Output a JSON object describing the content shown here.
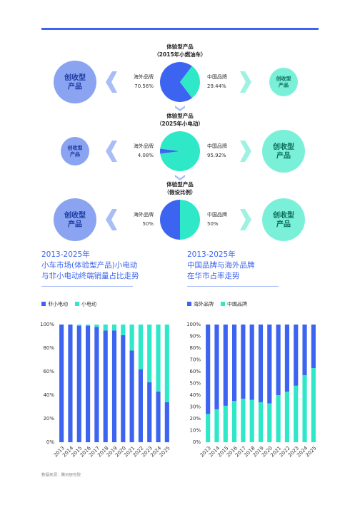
{
  "chart_data": [
    {
      "type": "pie",
      "title": [
        "体验型产品",
        "（2015年小燃油车）"
      ],
      "categories": [
        "海外品牌",
        "中国品牌"
      ],
      "values": [
        70.56,
        29.44
      ],
      "value_labels": [
        "70.56%",
        "29.44%"
      ],
      "colors": [
        "#3d64f0",
        "#2ee8c8"
      ],
      "left_node": [
        "创收型",
        "产品"
      ],
      "right_node": [
        "创收型",
        "产品"
      ]
    },
    {
      "type": "pie",
      "title": [
        "体验型产品",
        "（2025年小电动）"
      ],
      "categories": [
        "海外品牌",
        "中国品牌"
      ],
      "values": [
        4.08,
        95.92
      ],
      "value_labels": [
        "4.08%",
        "95.92%"
      ],
      "colors": [
        "#3d64f0",
        "#2ee8c8"
      ],
      "left_node": [
        "创收型",
        "产品"
      ],
      "right_node": [
        "创收型",
        "产品"
      ]
    },
    {
      "type": "pie",
      "title": [
        "体验型产品",
        "（假设比例）"
      ],
      "categories": [
        "海外品牌",
        "中国品牌"
      ],
      "values": [
        50,
        50
      ],
      "value_labels": [
        "50%",
        "50%"
      ],
      "colors": [
        "#3d64f0",
        "#2ee8c8"
      ],
      "left_node": [
        "创收型",
        "产品"
      ],
      "right_node": [
        "创收型",
        "产品"
      ]
    },
    {
      "type": "stacked_bar",
      "title": [
        "2013-2025年",
        "小车市场(体验型产品)小电动",
        "与非小电动终端销量占比走势"
      ],
      "categories": [
        "2013",
        "2014",
        "2015",
        "2016",
        "2017",
        "2018",
        "2019",
        "2020",
        "2021",
        "2022",
        "2023",
        "2024",
        "2025"
      ],
      "series": [
        {
          "name": "非小电动",
          "color": "#3d64f0",
          "values": [
            100,
            100,
            99,
            99,
            98,
            95,
            95,
            91,
            78,
            62,
            51,
            43,
            34
          ]
        },
        {
          "name": "小电动",
          "color": "#2ee8c8",
          "values": [
            0,
            0,
            1,
            1,
            2,
            5,
            5,
            9,
            22,
            38,
            49,
            57,
            66
          ]
        }
      ],
      "ylim": [
        0,
        100
      ],
      "yticks": [
        {
          "value": 0,
          "label": "0%"
        },
        {
          "value": 20,
          "label": "20%"
        },
        {
          "value": 40,
          "label": "40%"
        },
        {
          "value": 60,
          "label": "60%"
        },
        {
          "value": 80,
          "label": "80%"
        },
        {
          "value": 100,
          "label": "100%"
        }
      ]
    },
    {
      "type": "stacked_bar",
      "title": [
        "2013-2025年",
        "中国品牌与海外品牌",
        "在华市占率走势"
      ],
      "categories": [
        "2013",
        "2014",
        "2015",
        "2016",
        "2017",
        "2018",
        "2019",
        "2020",
        "2021",
        "2022",
        "2023",
        "2024",
        "2025"
      ],
      "series": [
        {
          "name": "中国品牌",
          "color": "#2ee8c8",
          "values": [
            24,
            28,
            31,
            35,
            37,
            36,
            34,
            33,
            40,
            43,
            48,
            57,
            63
          ]
        },
        {
          "name": "海外品牌",
          "color": "#3d64f0",
          "values": [
            76,
            72,
            69,
            65,
            63,
            64,
            66,
            67,
            60,
            57,
            52,
            43,
            37
          ]
        }
      ],
      "legend_order": [
        1,
        0
      ],
      "ylim": [
        0,
        100
      ],
      "yticks": [
        {
          "value": 0,
          "label": "0%"
        },
        {
          "value": 10,
          "label": "10%"
        },
        {
          "value": 20,
          "label": "20%"
        },
        {
          "value": 30,
          "label": "30%"
        },
        {
          "value": 40,
          "label": "40%"
        },
        {
          "value": 50,
          "label": "50%"
        },
        {
          "value": 60,
          "label": "60%"
        },
        {
          "value": 70,
          "label": "70%"
        },
        {
          "value": 80,
          "label": "80%"
        },
        {
          "value": 90,
          "label": "90%"
        },
        {
          "value": 100,
          "label": "100%"
        }
      ]
    }
  ],
  "source": "数据来源：腾讯研究院"
}
